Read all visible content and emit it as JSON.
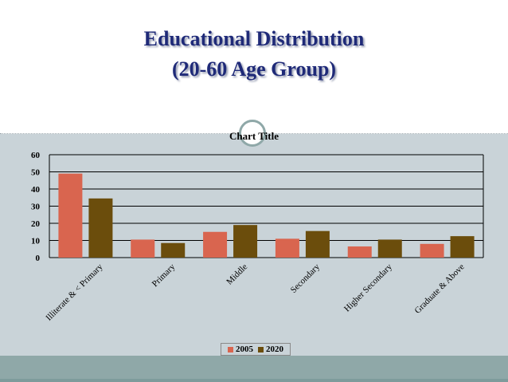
{
  "slide": {
    "title_line1": "Educational Distribution",
    "title_line2": "(20-60 Age Group)"
  },
  "colors": {
    "title": "#1f2a78",
    "series_2005": "#d9654f",
    "series_2020": "#6b4d0c",
    "content_bg": "#c9d3d8",
    "footer": "#8fa8a8"
  },
  "chart_data": {
    "type": "bar",
    "title": "Chart Title",
    "categories": [
      "Illiterate & < Primary",
      "Primary",
      "Middle",
      "Secondary",
      "Higher Secondary",
      "Graduate & Above"
    ],
    "series": [
      {
        "name": "2005",
        "values": [
          49,
          10.5,
          15,
          11,
          6.5,
          8
        ],
        "color": "#d9654f"
      },
      {
        "name": "2020",
        "values": [
          34.5,
          8.5,
          19,
          15.5,
          10.5,
          12.5
        ],
        "color": "#6b4d0c"
      }
    ],
    "ylim": [
      0,
      60
    ],
    "yticks": [
      "0",
      "10",
      "20",
      "30",
      "40",
      "50",
      "60"
    ],
    "grid": true,
    "legend_position": "bottom"
  }
}
